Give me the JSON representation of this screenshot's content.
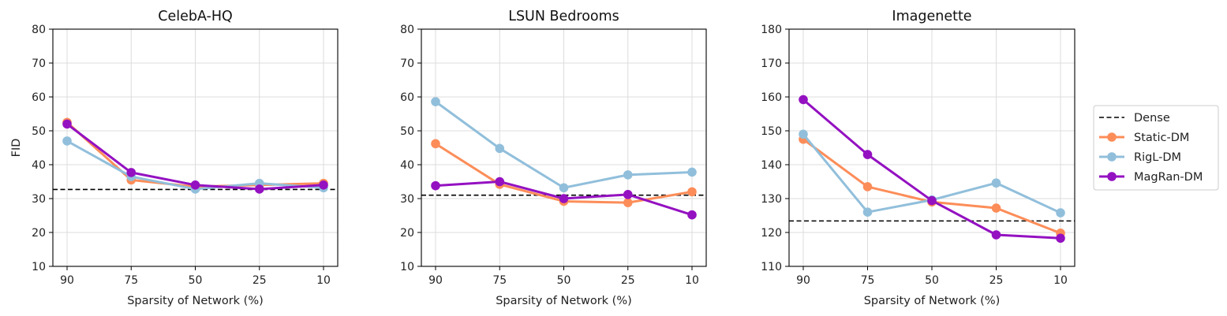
{
  "chart_data": [
    {
      "type": "line",
      "title": "CelebA-HQ",
      "xlabel": "Sparsity of Network (%)",
      "ylabel": "FID",
      "categories": [
        "90",
        "75",
        "50",
        "25",
        "10"
      ],
      "ylim": [
        10,
        80
      ],
      "yticks": [
        10,
        20,
        30,
        40,
        50,
        60,
        70,
        80
      ],
      "grid": true,
      "dense": 32.7,
      "series": [
        {
          "name": "Static-DM",
          "values": [
            52.5,
            35.5,
            33.5,
            34.0,
            34.5
          ]
        },
        {
          "name": "RigL-DM",
          "values": [
            47.0,
            36.5,
            32.8,
            34.5,
            33.2
          ]
        },
        {
          "name": "MagRan-DM",
          "values": [
            52.0,
            37.7,
            34.0,
            32.8,
            34.0
          ]
        }
      ]
    },
    {
      "type": "line",
      "title": "LSUN Bedrooms",
      "xlabel": "Sparsity of Network (%)",
      "ylabel": "",
      "categories": [
        "90",
        "75",
        "50",
        "25",
        "10"
      ],
      "ylim": [
        10,
        80
      ],
      "yticks": [
        10,
        20,
        30,
        40,
        50,
        60,
        70,
        80
      ],
      "grid": true,
      "dense": 31.0,
      "series": [
        {
          "name": "Static-DM",
          "values": [
            46.2,
            34.2,
            29.2,
            28.8,
            32.0
          ]
        },
        {
          "name": "RigL-DM",
          "values": [
            58.6,
            44.8,
            33.2,
            37.0,
            37.8
          ]
        },
        {
          "name": "MagRan-DM",
          "values": [
            33.8,
            35.0,
            30.0,
            31.2,
            25.2
          ]
        }
      ]
    },
    {
      "type": "line",
      "title": "Imagenette",
      "xlabel": "Sparsity of Network (%)",
      "ylabel": "",
      "categories": [
        "90",
        "75",
        "50",
        "25",
        "10"
      ],
      "ylim": [
        110,
        180
      ],
      "yticks": [
        110,
        120,
        130,
        140,
        150,
        160,
        170,
        180
      ],
      "grid": true,
      "dense": 123.4,
      "series": [
        {
          "name": "Static-DM",
          "values": [
            147.5,
            133.5,
            129.0,
            127.2,
            119.8
          ]
        },
        {
          "name": "RigL-DM",
          "values": [
            149.0,
            126.0,
            129.6,
            134.6,
            125.8
          ]
        },
        {
          "name": "MagRan-DM",
          "values": [
            159.2,
            143.0,
            129.4,
            119.3,
            118.3
          ]
        }
      ]
    }
  ],
  "legend": {
    "placement": "right",
    "items": [
      {
        "label": "Dense",
        "style": "dashed"
      },
      {
        "label": "Static-DM",
        "style": "line-marker"
      },
      {
        "label": "RigL-DM",
        "style": "line-marker"
      },
      {
        "label": "MagRan-DM",
        "style": "line-marker"
      }
    ]
  },
  "colors": {
    "Dense": "#000000",
    "Static-DM": "#fc8d59",
    "RigL-DM": "#91bfdb",
    "MagRan-DM": "#9411c1",
    "grid": "#dcdcdc"
  }
}
